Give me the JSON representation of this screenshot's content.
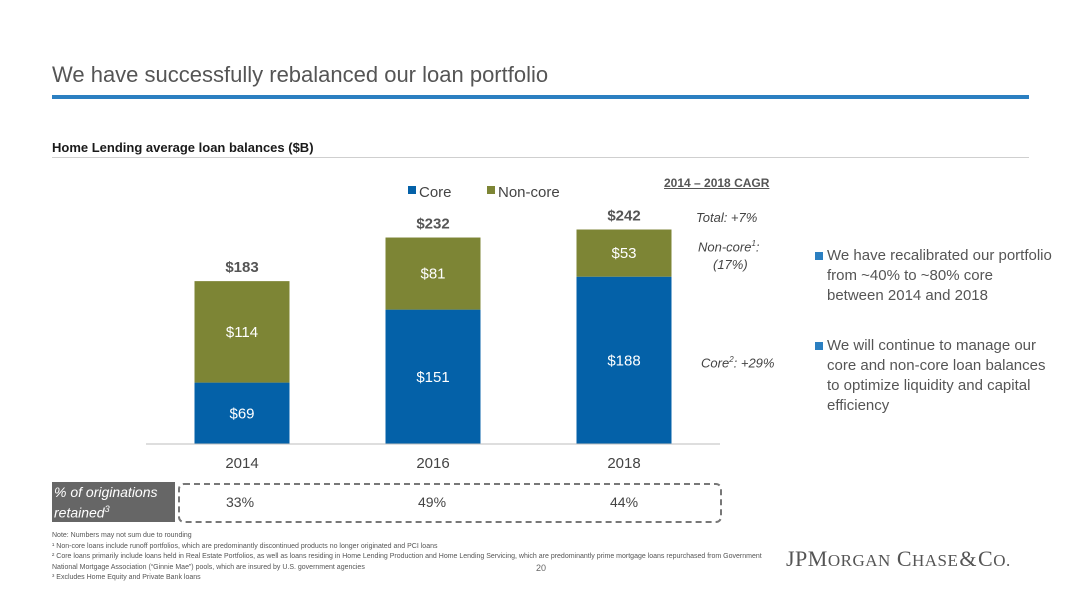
{
  "title": "We have successfully rebalanced our loan portfolio",
  "subtitle": "Home Lending average loan balances ($B)",
  "colors": {
    "core": "#0461a8",
    "noncore": "#7d8535",
    "accent": "#2b7fc1"
  },
  "chart_data": {
    "type": "bar",
    "stacked": true,
    "categories": [
      "2014",
      "2016",
      "2018"
    ],
    "series": [
      {
        "name": "Core",
        "values": [
          69,
          151,
          188
        ],
        "labels": [
          "$69",
          "$151",
          "$188"
        ]
      },
      {
        "name": "Non-core",
        "values": [
          114,
          81,
          53
        ],
        "labels": [
          "$114",
          "$81",
          "$53"
        ]
      }
    ],
    "totals": [
      "$183",
      "$232",
      "$242"
    ],
    "legend_position": "top",
    "grid": false
  },
  "cagr": {
    "title": "2014 – 2018 CAGR",
    "total": "Total: +7%",
    "noncore_label": "Non-core",
    "noncore_sup": "1",
    "noncore_colon": ":",
    "noncore_value": "(17%)",
    "core_label": "Core",
    "core_sup": "2",
    "core_value": ": +29%"
  },
  "bullets": [
    "We have recalibrated our portfolio from ~40% to ~80% core between 2014 and 2018",
    "We will continue to manage our core and non-core loan balances to optimize liquidity and capital efficiency"
  ],
  "originations": {
    "label_line1": "% of originations",
    "label_line2": "retained",
    "label_sup": "3",
    "values": [
      "33%",
      "49%",
      "44%"
    ]
  },
  "footnotes": [
    "Note: Numbers may not sum due to rounding",
    "¹ Non-core loans include runoff portfolios, which are predominantly discontinued products no longer originated and PCI loans",
    "² Core loans primarily include loans held in Real Estate Portfolios, as well as loans residing in Home Lending Production and Home Lending Servicing, which are predominantly prime mortgage loans repurchased from Government National Mortgage Association (“Ginnie Mae”) pools, which are insured by U.S. government agencies",
    "³ Excludes Home Equity and Private Bank loans"
  ],
  "page_number": "20",
  "logo": {
    "jp": "JP",
    "m": "M",
    "organ": "ORGAN",
    "c": "C",
    "hase": "HASE",
    "amp": "&",
    "co": "C",
    "o": "O."
  }
}
